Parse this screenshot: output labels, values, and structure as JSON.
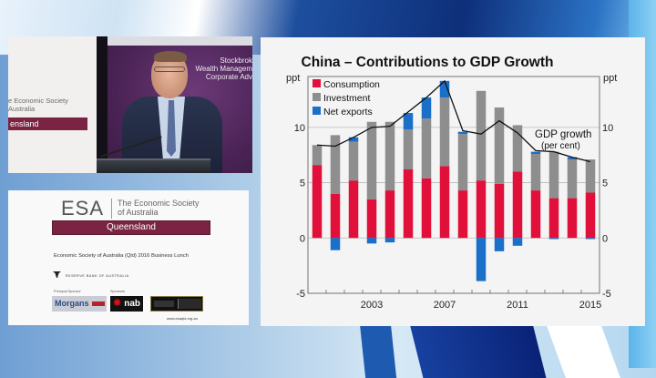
{
  "video": {
    "banner_line1": "e Economic Society",
    "banner_line2": "Australia",
    "banner_region": "ensland",
    "backdrop_lines": [
      "Stockbrok",
      "Wealth Managem",
      "Corporate Adv"
    ]
  },
  "esa_card": {
    "logo": "ESA",
    "org_name_line1": "The Economic Society",
    "org_name_line2": "of Australia",
    "region": "Queensland",
    "event": "Economic Society of Australia (Qld)  2016 Business Lunch",
    "rba": "RESERVE BANK OF AUSTRALIA",
    "principal_sponsor_label": "Principal Sponsor",
    "sponsors_label": "Sponsors",
    "principal_sponsor": "Morgans",
    "principal_sponsor_partner": "CIMB",
    "sponsor_1": "nab",
    "url": "www.esaqld.org.au"
  },
  "chart_data": {
    "type": "bar",
    "stacked": true,
    "title": "China – Contributions to GDP Growth",
    "ylabel_left": "ppt",
    "ylabel_right": "ppt",
    "ylim": [
      -5,
      14.6
    ],
    "yticks": [
      -5,
      0,
      5,
      10
    ],
    "ytick_labels": [
      "-5",
      "0",
      "5",
      "10"
    ],
    "xtick_labels": [
      {
        "year": 2003,
        "label": "2003"
      },
      {
        "year": 2007,
        "label": "2007"
      },
      {
        "year": 2011,
        "label": "2011"
      },
      {
        "year": 2015,
        "label": "2015"
      }
    ],
    "grid": true,
    "legend_position": "top-left",
    "categories": [
      2000,
      2001,
      2002,
      2003,
      2004,
      2005,
      2006,
      2007,
      2008,
      2009,
      2010,
      2011,
      2012,
      2013,
      2014,
      2015
    ],
    "series": [
      {
        "name": "Consumption",
        "color": "#e0103a",
        "values": [
          6.6,
          4.0,
          5.2,
          3.5,
          4.3,
          6.2,
          5.4,
          6.5,
          4.3,
          5.2,
          4.9,
          6.0,
          4.3,
          3.6,
          3.6,
          4.1
        ]
      },
      {
        "name": "Investment",
        "color": "#8e8e8e",
        "values": [
          1.8,
          5.3,
          3.5,
          7.0,
          6.2,
          3.6,
          5.4,
          6.2,
          5.1,
          8.1,
          6.9,
          4.2,
          3.3,
          4.2,
          3.5,
          3.0
        ]
      },
      {
        "name": "Net exports",
        "color": "#1a6fc9",
        "values": [
          0.0,
          -1.1,
          0.4,
          -0.5,
          -0.4,
          1.5,
          1.9,
          1.5,
          0.2,
          -3.9,
          -1.2,
          -0.7,
          0.2,
          -0.1,
          0.2,
          -0.1
        ]
      }
    ],
    "line_series": {
      "name": "GDP growth",
      "unit_label": "(per cent)",
      "color": "#111111",
      "values": [
        8.4,
        8.3,
        9.1,
        10.0,
        10.1,
        11.4,
        12.7,
        14.2,
        9.7,
        9.4,
        10.6,
        9.5,
        7.9,
        7.8,
        7.3,
        6.9
      ]
    },
    "annotation": {
      "line1": "GDP growth",
      "line2": "(per cent)"
    }
  }
}
